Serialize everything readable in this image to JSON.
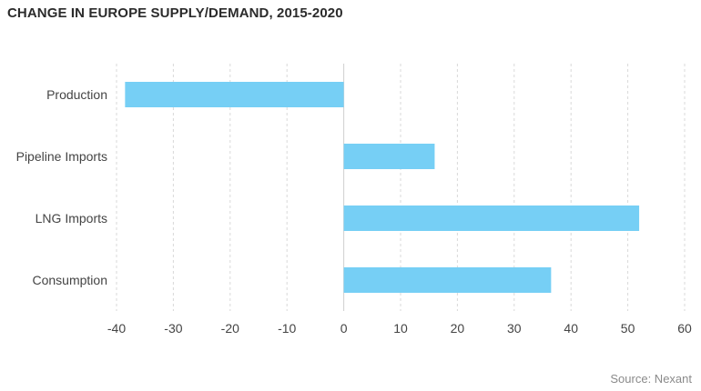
{
  "chart_data": {
    "type": "bar",
    "orientation": "horizontal",
    "title": "CHANGE IN EUROPE SUPPLY/DEMAND, 2015-2020",
    "source": "Source: Nexant",
    "categories": [
      "Production",
      "Pipeline Imports",
      "LNG Imports",
      "Consumption"
    ],
    "values": [
      -38.5,
      16,
      52,
      36.5
    ],
    "xlim": [
      -40,
      60
    ],
    "xticks": [
      -40,
      -30,
      -20,
      -10,
      0,
      10,
      20,
      30,
      40,
      50,
      60
    ],
    "xlabel": "",
    "ylabel": "",
    "grid": true,
    "legend": "none",
    "bar_color": "#76CFF5"
  }
}
